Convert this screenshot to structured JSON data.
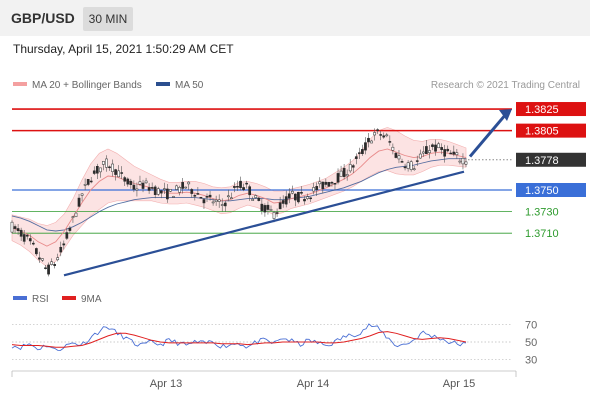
{
  "header": {
    "pair": "GBP/USD",
    "timeframe": "30 MIN",
    "timestamp": "Thursday, April 15, 2021 1:50:29 AM CET"
  },
  "legend": {
    "ma20": "MA 20 + Bollinger Bands",
    "ma50": "MA 50",
    "credit": "Research © 2021 Trading Central"
  },
  "indicator_legend": {
    "rsi": "RSI",
    "ma9": "9MA"
  },
  "colors": {
    "resistance": "#dd1111",
    "support_pivot": "#3a6fd8",
    "support": "#2e9b2e",
    "price": "#333333",
    "ma20": "#e88a8a",
    "ma50": "#2b4f8f",
    "rsi": "#4a6fd4",
    "ma9": "#e02020",
    "trend": "#2b4f96"
  },
  "chart_data": [
    {
      "type": "line",
      "title": "",
      "y_range": [
        1.3662,
        1.3838
      ],
      "x_ticks": [
        "Apr 13",
        "Apr 14",
        "Apr 15"
      ],
      "levels": [
        {
          "value": 1.3825,
          "label": "1.3825",
          "kind": "resistance"
        },
        {
          "value": 1.3805,
          "label": "1.3805",
          "kind": "resistance"
        },
        {
          "value": 1.3778,
          "label": "1.3778",
          "kind": "last_price"
        },
        {
          "value": 1.375,
          "label": "1.3750",
          "kind": "pivot"
        },
        {
          "value": 1.373,
          "label": "1.3730",
          "kind": "support"
        },
        {
          "value": 1.371,
          "label": "1.3710",
          "kind": "support"
        }
      ],
      "trendline": {
        "from_price": 1.3671,
        "to_price": 1.3767
      },
      "projection_target": 1.3825,
      "close_path": [
        1.3716,
        1.371,
        1.3702,
        1.369,
        1.3675,
        1.3683,
        1.37,
        1.3722,
        1.3745,
        1.3762,
        1.377,
        1.3775,
        1.3768,
        1.3758,
        1.3752,
        1.3755,
        1.3752,
        1.3748,
        1.3746,
        1.375,
        1.3754,
        1.3748,
        1.3742,
        1.374,
        1.3736,
        1.3744,
        1.3755,
        1.3752,
        1.374,
        1.3733,
        1.3728,
        1.3738,
        1.3745,
        1.3743,
        1.3746,
        1.3752,
        1.3756,
        1.376,
        1.3765,
        1.3772,
        1.3784,
        1.3797,
        1.3803,
        1.3798,
        1.3783,
        1.3775,
        1.3772,
        1.3782,
        1.379,
        1.3788,
        1.3784,
        1.378,
        1.3778
      ],
      "ma20_path": [
        1.3715,
        1.3712,
        1.3708,
        1.3702,
        1.3698,
        1.3702,
        1.3712,
        1.3725,
        1.3738,
        1.375,
        1.3758,
        1.3763,
        1.3762,
        1.3759,
        1.3756,
        1.3754,
        1.3752,
        1.3749,
        1.3747,
        1.3747,
        1.3748,
        1.3747,
        1.3745,
        1.3742,
        1.374,
        1.3741,
        1.3745,
        1.3747,
        1.3745,
        1.3742,
        1.3738,
        1.3739,
        1.3742,
        1.3744,
        1.3746,
        1.3749,
        1.3752,
        1.3756,
        1.376,
        1.3765,
        1.3772,
        1.378,
        1.3786,
        1.3788,
        1.3785,
        1.3782,
        1.378,
        1.3781,
        1.3784,
        1.3785,
        1.3784,
        1.3782,
        1.378
      ],
      "band_width_path": [
        12,
        13,
        15,
        17,
        19,
        18,
        16,
        17,
        21,
        24,
        26,
        25,
        22,
        19,
        16,
        14,
        12,
        11,
        10,
        10,
        10,
        11,
        11,
        11,
        12,
        12,
        12,
        11,
        11,
        11,
        11,
        10,
        9,
        9,
        9,
        9,
        9,
        10,
        11,
        12,
        14,
        17,
        19,
        20,
        20,
        18,
        16,
        14,
        13,
        12,
        11,
        10,
        9
      ],
      "ma50_path": [
        1.3726,
        1.3724,
        1.3721,
        1.3717,
        1.3713,
        1.3712,
        1.3713,
        1.3716,
        1.372,
        1.3725,
        1.373,
        1.3734,
        1.3737,
        1.3739,
        1.3741,
        1.3742,
        1.3743,
        1.3743,
        1.3743,
        1.3743,
        1.3743,
        1.3743,
        1.3742,
        1.3741,
        1.374,
        1.374,
        1.3741,
        1.3742,
        1.3742,
        1.3742,
        1.3741,
        1.3741,
        1.3742,
        1.3743,
        1.3744,
        1.3746,
        1.3748,
        1.375,
        1.3752,
        1.3755,
        1.3758,
        1.3762,
        1.3766,
        1.3769,
        1.3771,
        1.3772,
        1.3773,
        1.3775,
        1.3777,
        1.3778,
        1.3779,
        1.3779,
        1.3779
      ]
    },
    {
      "type": "line",
      "y_range": [
        20,
        80
      ],
      "y_ticks": [
        70,
        50,
        30
      ],
      "series": [
        {
          "name": "RSI",
          "values": [
            46,
            44,
            48,
            42,
            47,
            40,
            45,
            49,
            47,
            55,
            63,
            68,
            60,
            55,
            48,
            46,
            50,
            47,
            52,
            49,
            46,
            50,
            48,
            51,
            45,
            47,
            49,
            44,
            50,
            52,
            48,
            55,
            51,
            47,
            52,
            49,
            46,
            50,
            56,
            58,
            62,
            70,
            65,
            55,
            46,
            47,
            52,
            61,
            57,
            55,
            50,
            48,
            47
          ]
        },
        {
          "name": "9MA",
          "values": [
            47,
            46,
            46,
            46,
            45,
            44,
            44,
            45,
            46,
            49,
            53,
            57,
            60,
            60,
            58,
            55,
            52,
            50,
            49,
            49,
            49,
            49,
            49,
            49,
            48,
            48,
            48,
            47,
            48,
            49,
            49,
            50,
            50,
            50,
            50,
            50,
            49,
            49,
            50,
            52,
            54,
            57,
            61,
            62,
            60,
            57,
            54,
            53,
            54,
            55,
            54,
            52,
            50
          ]
        }
      ]
    }
  ]
}
